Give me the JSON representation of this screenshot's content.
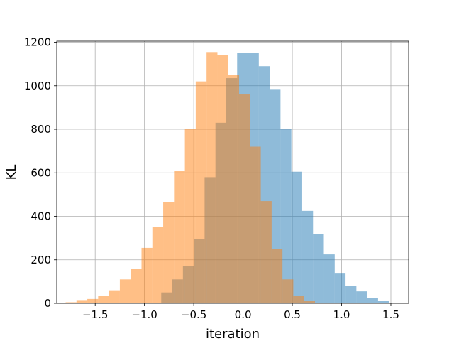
{
  "chart_data": {
    "type": "bar",
    "subtype": "overlapping-histogram",
    "title": "",
    "xlabel": "iteration",
    "ylabel": "KL",
    "xlim": [
      -1.89,
      1.68
    ],
    "ylim": [
      0,
      1205
    ],
    "xticks": [
      -1.5,
      -1.0,
      -0.5,
      0.0,
      0.5,
      1.0,
      1.5
    ],
    "xtick_labels": [
      "−1.5",
      "−1.0",
      "−0.5",
      "0.0",
      "0.5",
      "1.0",
      "1.5"
    ],
    "yticks": [
      0,
      200,
      400,
      600,
      800,
      1000,
      1200
    ],
    "ytick_labels": [
      "0",
      "200",
      "400",
      "600",
      "800",
      "1000",
      "1200"
    ],
    "grid": true,
    "legend": "none",
    "series": [
      {
        "color": "#1f77b4",
        "opacity": 0.5,
        "bin_edges": [
          -0.83,
          -0.72,
          -0.61,
          -0.5,
          -0.39,
          -0.28,
          -0.17,
          -0.06,
          0.05,
          0.16,
          0.27,
          0.38,
          0.49,
          0.6,
          0.71,
          0.82,
          0.93,
          1.04,
          1.15,
          1.26,
          1.37,
          1.48
        ],
        "counts": [
          50,
          110,
          170,
          295,
          580,
          830,
          1035,
          1150,
          1150,
          1090,
          985,
          800,
          605,
          425,
          320,
          225,
          140,
          80,
          55,
          25,
          10
        ]
      },
      {
        "color": "#ff7f0e",
        "opacity": 0.5,
        "bin_edges": [
          -1.8,
          -1.69,
          -1.58,
          -1.47,
          -1.36,
          -1.25,
          -1.14,
          -1.03,
          -0.92,
          -0.81,
          -0.7,
          -0.59,
          -0.48,
          -0.37,
          -0.26,
          -0.15,
          -0.04,
          0.07,
          0.18,
          0.29,
          0.4,
          0.51,
          0.62,
          0.73
        ],
        "counts": [
          5,
          15,
          20,
          35,
          60,
          110,
          160,
          255,
          350,
          465,
          610,
          800,
          1020,
          1155,
          1140,
          1050,
          960,
          720,
          470,
          250,
          110,
          35,
          10
        ]
      }
    ]
  }
}
